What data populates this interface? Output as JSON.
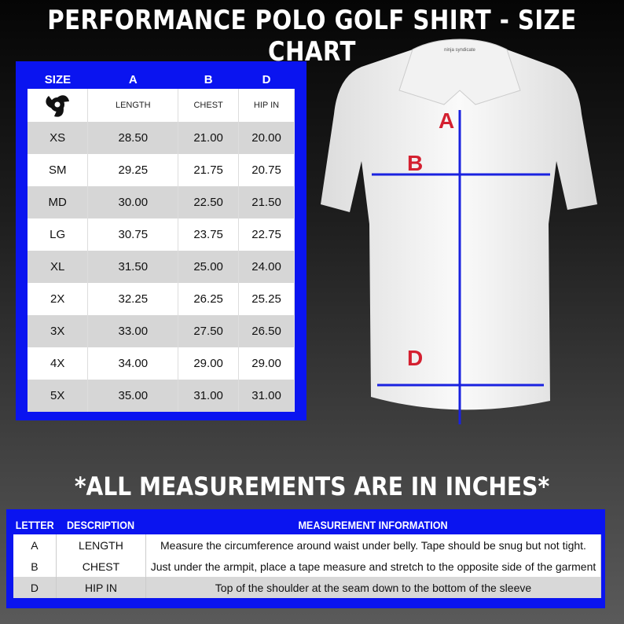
{
  "title": "PERFORMANCE POLO GOLF SHIRT - SIZE CHART",
  "size_table": {
    "headers": [
      "SIZE",
      "A",
      "B",
      "D"
    ],
    "labels": [
      "LENGTH",
      "CHEST",
      "HIP IN"
    ],
    "logo_icon": "shuriken-logo-icon",
    "rows": [
      [
        "XS",
        "28.50",
        "21.00",
        "20.00"
      ],
      [
        "SM",
        "29.25",
        "21.75",
        "20.75"
      ],
      [
        "MD",
        "30.00",
        "22.50",
        "21.50"
      ],
      [
        "LG",
        "30.75",
        "23.75",
        "22.75"
      ],
      [
        "XL",
        "31.50",
        "25.00",
        "24.00"
      ],
      [
        "2X",
        "32.25",
        "26.25",
        "25.25"
      ],
      [
        "3X",
        "33.00",
        "27.50",
        "26.50"
      ],
      [
        "4X",
        "34.00",
        "29.00",
        "29.00"
      ],
      [
        "5X",
        "35.00",
        "31.00",
        "31.00"
      ]
    ]
  },
  "diagram": {
    "labels": [
      "A",
      "B",
      "D"
    ],
    "line_color": "#1a22e0",
    "label_color": "#d42030"
  },
  "note": "*ALL MEASUREMENTS ARE IN INCHES*",
  "info_table": {
    "headers": [
      "LETTER",
      "DESCRIPTION",
      "MEASUREMENT INFORMATION"
    ],
    "rows": [
      [
        "A",
        "LENGTH",
        "Measure the circumference around waist under belly. Tape should be snug but not tight."
      ],
      [
        "B",
        "CHEST",
        "Just under the armpit, place a tape measure and stretch to the opposite side of the garment"
      ],
      [
        "D",
        "HIP IN",
        "Top of the shoulder at the seam down to the bottom of the sleeve"
      ]
    ]
  },
  "colors": {
    "accent": "#0a14f0"
  }
}
